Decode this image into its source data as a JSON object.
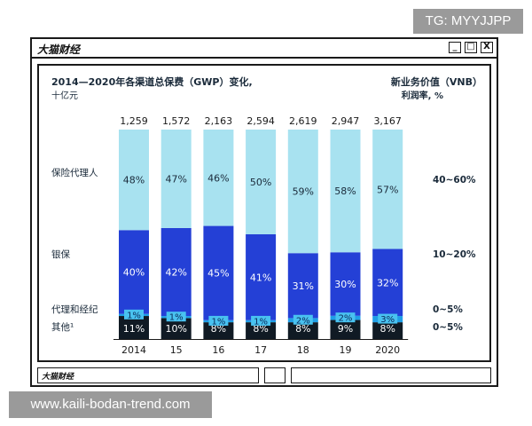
{
  "watermarks": {
    "top_right": "TG: MYYJJPP",
    "bottom_left": "www.kaili-bodan-trend.com"
  },
  "window": {
    "title": "大猫财经",
    "status_brand": "大猫财经",
    "btn_min": "_",
    "btn_max": "□",
    "btn_close": "X"
  },
  "header": {
    "title": "2014—2020年各渠道总保费（GWP）变化,",
    "unit": "十亿元",
    "right_title": "新业务价值（VNB）",
    "right_sub": "利润率, %"
  },
  "colors": {
    "agent": "#a8e2f0",
    "bank": "#2440d6",
    "broker": "#1f9ee6",
    "other": "#101a24",
    "broker_label_bg": "#49c2f0"
  },
  "chart_data": {
    "type": "bar",
    "stacked": "percent",
    "categories": [
      "2014",
      "15",
      "16",
      "17",
      "18",
      "19",
      "2020"
    ],
    "totals": [
      1259,
      1572,
      2163,
      2594,
      2619,
      2947,
      3167
    ],
    "total_labels": [
      "1,259",
      "1,572",
      "2,163",
      "2,594",
      "2,619",
      "2,947",
      "3,167"
    ],
    "series": [
      {
        "name": "其他¹",
        "values": [
          11,
          10,
          8,
          8,
          8,
          9,
          8
        ],
        "vnb": "0~5%"
      },
      {
        "name": "代理和经纪",
        "values": [
          1,
          1,
          1,
          1,
          2,
          2,
          3
        ],
        "vnb": "0~5%"
      },
      {
        "name": "银保",
        "values": [
          40,
          42,
          45,
          41,
          31,
          30,
          32
        ],
        "vnb": "10~20%"
      },
      {
        "name": "保险代理人",
        "values": [
          48,
          47,
          46,
          50,
          59,
          58,
          57
        ],
        "vnb": "40~60%"
      }
    ],
    "value_labels": [
      [
        "11%",
        "10%",
        "8%",
        "8%",
        "8%",
        "9%",
        "8%"
      ],
      [
        "1%",
        "1%",
        "1%",
        "1%",
        "2%",
        "2%",
        "3%"
      ],
      [
        "40%",
        "42%",
        "45%",
        "41%",
        "31%",
        "30%",
        "32%"
      ],
      [
        "48%",
        "47%",
        "46%",
        "50%",
        "59%",
        "58%",
        "57%"
      ]
    ],
    "ylim": [
      0,
      100
    ]
  }
}
